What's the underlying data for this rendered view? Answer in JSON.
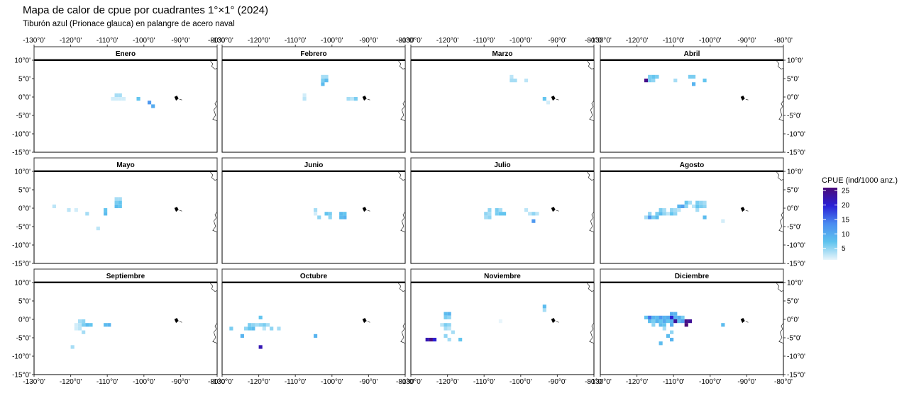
{
  "chart_data": {
    "type": "heatmap",
    "title": "Mapa de calor de cpue por cuadrantes 1°×1° (2024)",
    "subtitle": "Tiburón azul (Prionace glauca) en palangre de acero naval",
    "legend_title": "CPUE (ind/1000 anz.)",
    "colorscale": [
      "#e8f5fb",
      "#5ec3ee",
      "#4a8cf0",
      "#2a20d6",
      "#4b0a78"
    ],
    "clim": [
      1,
      26
    ],
    "cticks": [
      5,
      10,
      15,
      20,
      25
    ],
    "xlim": [
      -130,
      -80
    ],
    "ylim": [
      -15,
      10
    ],
    "xticks": [
      {
        "value": -130,
        "label": "-130°0'"
      },
      {
        "value": -120,
        "label": "-120°0'"
      },
      {
        "value": -110,
        "label": "-110°0'"
      },
      {
        "value": -100,
        "label": "-100°0'"
      },
      {
        "value": -90,
        "label": "-90°0'"
      },
      {
        "value": -80,
        "label": "-80°0'"
      }
    ],
    "yticks": [
      {
        "value": 10,
        "label": "10°0'"
      },
      {
        "value": 5,
        "label": "5°0'"
      },
      {
        "value": 0,
        "label": "0°0'"
      },
      {
        "value": -5,
        "label": "-5°0'"
      },
      {
        "value": -10,
        "label": "-10°0'"
      },
      {
        "value": -15,
        "label": "-15°0'"
      }
    ],
    "panels": [
      {
        "name": "Enero",
        "lon": [
          -107.5,
          -106.5,
          -108.5,
          -107.5,
          -106.5,
          -105.5,
          -101.5,
          -98.5,
          -97.5
        ],
        "lat": [
          0.5,
          0.5,
          -0.5,
          -0.5,
          -0.5,
          -0.5,
          -0.5,
          -1.5,
          -2.5
        ],
        "values": [
          4,
          4,
          2,
          2,
          2,
          2,
          7,
          12,
          10
        ]
      },
      {
        "name": "Febrero",
        "lon": [
          -107.5,
          -107.5,
          -102.5,
          -101.5,
          -102.5,
          -101.5,
          -102.5,
          -95.5,
          -94.5,
          -93.5
        ],
        "lat": [
          0.5,
          -0.5,
          5.5,
          5.5,
          4.5,
          4.5,
          3.5,
          -0.5,
          -0.5,
          -0.5
        ],
        "values": [
          2,
          3,
          4,
          4,
          6,
          8,
          8,
          4,
          3,
          6
        ]
      },
      {
        "name": "Marzo",
        "lon": [
          -102.5,
          -102.5,
          -101.5,
          -98.5,
          -93.5,
          -92.5
        ],
        "lat": [
          5.5,
          4.5,
          4.5,
          4.5,
          -0.5,
          -1.5
        ],
        "values": [
          3,
          4,
          4,
          3,
          7,
          2
        ]
      },
      {
        "name": "Abril",
        "lon": [
          -117.5,
          -116.5,
          -116.5,
          -115.5,
          -114.5,
          -115.5,
          -109.5,
          -105.5,
          -104.5,
          -104.5,
          -101.5
        ],
        "lat": [
          4.5,
          4.5,
          5.5,
          5.5,
          5.5,
          4.5,
          4.5,
          5.5,
          5.5,
          3.5,
          4.5
        ],
        "values": [
          25,
          6,
          6,
          7,
          6,
          5,
          4,
          6,
          6,
          9,
          7
        ]
      },
      {
        "name": "Mayo",
        "lon": [
          -124.5,
          -120.5,
          -118.5,
          -115.5,
          -110.5,
          -110.5,
          -112.5,
          -107.5,
          -106.5,
          -107.5,
          -106.5,
          -107.5,
          -106.5
        ],
        "lat": [
          0.5,
          -0.5,
          -0.5,
          -1.5,
          -0.5,
          -1.5,
          -5.5,
          2.5,
          2.5,
          1.5,
          1.5,
          0.5,
          0.5
        ],
        "values": [
          3,
          3,
          2,
          4,
          7,
          8,
          3,
          4,
          4,
          6,
          7,
          8,
          7
        ]
      },
      {
        "name": "Junio",
        "lon": [
          -104.5,
          -104.5,
          -103.5,
          -101.5,
          -100.5,
          -100.5,
          -97.5,
          -96.5,
          -97.5,
          -96.5
        ],
        "lat": [
          -0.5,
          -1.5,
          -2.5,
          -1.5,
          -1.5,
          -2.5,
          -1.5,
          -1.5,
          -2.5,
          -2.5
        ],
        "values": [
          4,
          2,
          5,
          7,
          6,
          5,
          8,
          7,
          8,
          9
        ]
      },
      {
        "name": "Julio",
        "lon": [
          -108.5,
          -109.5,
          -108.5,
          -109.5,
          -108.5,
          -106.5,
          -105.5,
          -106.5,
          -105.5,
          -104.5,
          -98.5,
          -97.5,
          -96.5,
          -95.5,
          -96.5
        ],
        "lat": [
          -0.5,
          -1.5,
          -1.5,
          -2.5,
          -2.5,
          -0.5,
          -0.5,
          -1.5,
          -1.5,
          -1.5,
          -0.5,
          -1.5,
          -1.5,
          -1.5,
          -3.5
        ],
        "values": [
          5,
          5,
          4,
          4,
          5,
          6,
          4,
          6,
          7,
          7,
          3,
          3,
          5,
          3,
          12
        ]
      },
      {
        "name": "Agosto",
        "lon": [
          -117.5,
          -116.5,
          -115.5,
          -114.5,
          -116.5,
          -114.5,
          -113.5,
          -112.5,
          -111.5,
          -110.5,
          -109.5,
          -113.5,
          -112.5,
          -110.5,
          -109.5,
          -108.5,
          -108.5,
          -107.5,
          -106.5,
          -106.5,
          -105.5,
          -103.5,
          -102.5,
          -101.5,
          -104.5,
          -103.5,
          -102.5,
          -101.5,
          -103.5,
          -101.5,
          -96.5
        ],
        "lat": [
          -2.5,
          -2.5,
          -2.5,
          -2.5,
          -1.5,
          -1.5,
          -1.5,
          -1.5,
          -1.5,
          -1.5,
          -1.5,
          -0.5,
          -0.5,
          -0.5,
          -0.5,
          -0.5,
          0.5,
          0.5,
          0.5,
          1.5,
          1.5,
          1.5,
          1.5,
          1.5,
          0.5,
          0.5,
          0.5,
          0.5,
          -0.5,
          -2.5,
          -3.5
        ],
        "values": [
          4,
          12,
          6,
          8,
          5,
          6,
          8,
          5,
          3,
          7,
          5,
          6,
          4,
          5,
          4,
          3,
          9,
          11,
          5,
          7,
          4,
          6,
          5,
          4,
          3,
          7,
          6,
          5,
          4,
          8,
          2
        ]
      },
      {
        "name": "Septiembre",
        "lon": [
          -117.5,
          -116.5,
          -117.5,
          -116.5,
          -115.5,
          -114.5,
          -118.5,
          -118.5,
          -117.5,
          -116.5,
          -110.5,
          -109.5,
          -119.5
        ],
        "lat": [
          -0.5,
          -0.5,
          -1.5,
          -1.5,
          -1.5,
          -1.5,
          -1.5,
          -2.5,
          -2.5,
          -3.5,
          -1.5,
          -1.5,
          -7.5
        ],
        "values": [
          4,
          5,
          3,
          6,
          8,
          7,
          2,
          2,
          3,
          4,
          8,
          9,
          4
        ]
      },
      {
        "name": "Octubre",
        "lon": [
          -127.5,
          -124.5,
          -123.5,
          -122.5,
          -121.5,
          -122.5,
          -121.5,
          -120.5,
          -119.5,
          -118.5,
          -117.5,
          -119.5,
          -118.5,
          -116.5,
          -114.5,
          -119.5,
          -104.5
        ],
        "lat": [
          -2.5,
          -4.5,
          -2.5,
          -2.5,
          -2.5,
          -1.5,
          -1.5,
          -1.5,
          -1.5,
          -1.5,
          -1.5,
          0.5,
          -2.5,
          -2.5,
          -2.5,
          -7.5,
          -4.5
        ],
        "values": [
          6,
          9,
          5,
          7,
          8,
          6,
          5,
          4,
          5,
          6,
          4,
          7,
          3,
          5,
          4,
          22,
          9
        ]
      },
      {
        "name": "Noviembre",
        "lon": [
          -125.5,
          -124.5,
          -123.5,
          -120.5,
          -119.5,
          -120.5,
          -119.5,
          -121.5,
          -120.5,
          -119.5,
          -120.5,
          -119.5,
          -118.5,
          -120.5,
          -119.5,
          -116.5,
          -105.5,
          -93.5,
          -93.5
        ],
        "lat": [
          -5.5,
          -5.5,
          -5.5,
          1.5,
          1.5,
          0.5,
          0.5,
          -1.5,
          -1.5,
          -1.5,
          -2.5,
          -2.5,
          -3.5,
          -4.5,
          -5.5,
          -5.5,
          -0.5,
          3.5,
          2.5
        ],
        "values": [
          22,
          25,
          20,
          8,
          9,
          6,
          5,
          3,
          6,
          5,
          4,
          3,
          4,
          5,
          4,
          7,
          1,
          8,
          4
        ]
      },
      {
        "name": "Diciembre",
        "lon": [
          -117.5,
          -116.5,
          -115.5,
          -114.5,
          -113.5,
          -112.5,
          -111.5,
          -110.5,
          -109.5,
          -108.5,
          -107.5,
          -116.5,
          -115.5,
          -114.5,
          -113.5,
          -112.5,
          -111.5,
          -110.5,
          -109.5,
          -108.5,
          -107.5,
          -106.5,
          -105.5,
          -115.5,
          -113.5,
          -112.5,
          -110.5,
          -106.5,
          -110.5,
          -109.5,
          -112.5,
          -110.5,
          -111.5,
          -110.5,
          -113.5,
          -96.5
        ],
        "lat": [
          0.5,
          0.5,
          0.5,
          0.5,
          0.5,
          0.5,
          0.5,
          0.5,
          0.5,
          0.5,
          0.5,
          -0.5,
          -0.5,
          -0.5,
          -0.5,
          -0.5,
          -0.5,
          -0.5,
          -0.5,
          -0.5,
          -0.5,
          -0.5,
          -0.5,
          -1.5,
          -1.5,
          -1.5,
          -1.5,
          -1.5,
          1.5,
          1.5,
          -2.5,
          -3.5,
          -4.5,
          -5.5,
          -6.5,
          -1.5
        ],
        "values": [
          7,
          15,
          9,
          8,
          12,
          9,
          10,
          20,
          9,
          10,
          6,
          8,
          6,
          9,
          7,
          10,
          7,
          9,
          24,
          8,
          11,
          25,
          24,
          5,
          8,
          7,
          10,
          26,
          10,
          9,
          4,
          5,
          8,
          9,
          8,
          8
        ]
      }
    ]
  }
}
